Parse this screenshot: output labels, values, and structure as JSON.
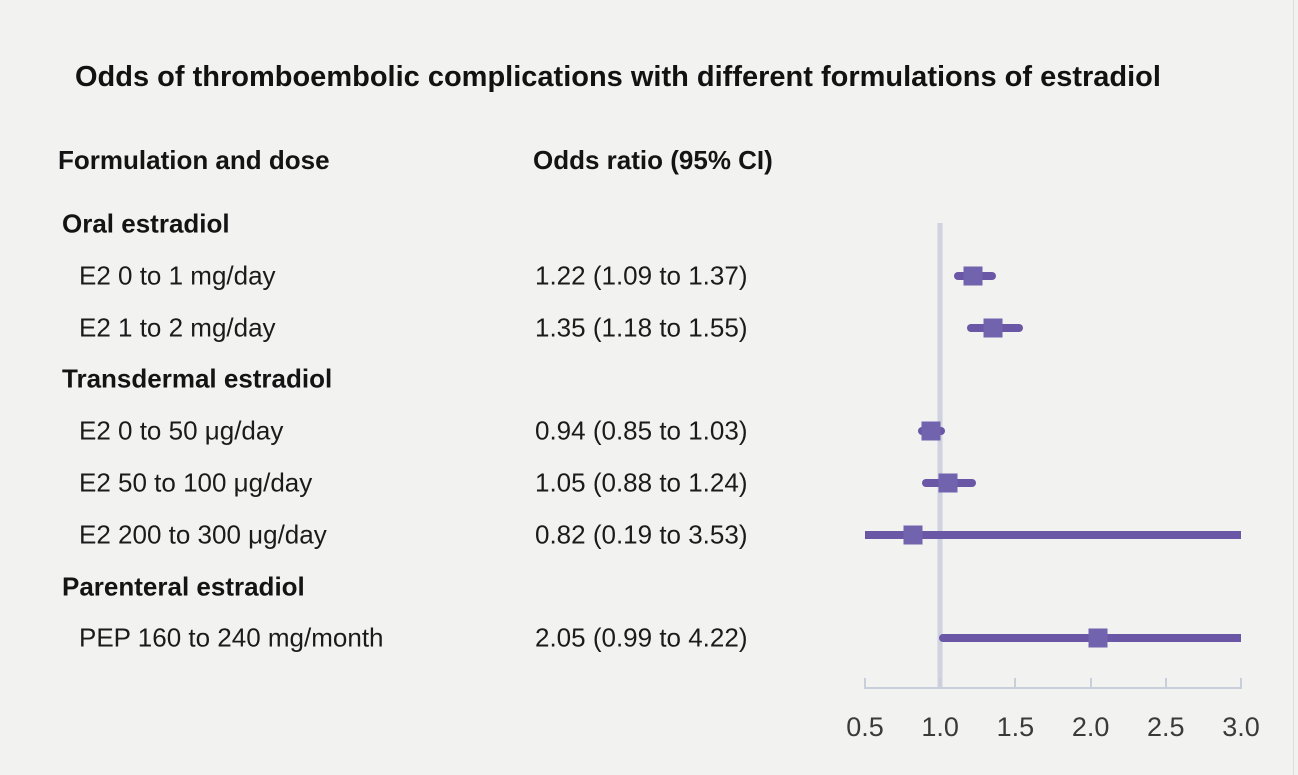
{
  "title": "Odds of thromboembolic complications with different formulations of estradiol",
  "columns": {
    "formulation": "Formulation and dose",
    "odds_ratio": "Odds ratio (95% CI)"
  },
  "chart_data": {
    "type": "forest",
    "title": "Odds of thromboembolic complications with different formulations of estradiol",
    "x_axis": {
      "min": 0.5,
      "max": 3.0,
      "step": 0.5,
      "reference_line": 1.0,
      "tick_labels": [
        "0.5",
        "1.0",
        "1.5",
        "2.0",
        "2.5",
        "3.0"
      ]
    },
    "rows": [
      {
        "kind": "group",
        "label": "Oral estradiol"
      },
      {
        "kind": "item",
        "label": "E2 0 to 1 mg/day",
        "value_text": "1.22 (1.09 to 1.37)",
        "est": 1.22,
        "lo": 1.09,
        "hi": 1.37
      },
      {
        "kind": "item",
        "label": "E2 1 to 2 mg/day",
        "value_text": "1.35 (1.18 to 1.55)",
        "est": 1.35,
        "lo": 1.18,
        "hi": 1.55
      },
      {
        "kind": "group",
        "label": "Transdermal estradiol"
      },
      {
        "kind": "item",
        "label": "E2 0 to 50 μg/day",
        "value_text": "0.94 (0.85 to 1.03)",
        "est": 0.94,
        "lo": 0.85,
        "hi": 1.03
      },
      {
        "kind": "item",
        "label": "E2 50 to 100 μg/day",
        "value_text": "1.05 (0.88 to 1.24)",
        "est": 1.05,
        "lo": 0.88,
        "hi": 1.24
      },
      {
        "kind": "item",
        "label": "E2 200 to 300 μg/day",
        "value_text": "0.82 (0.19 to 3.53)",
        "est": 0.82,
        "lo": 0.19,
        "hi": 3.53
      },
      {
        "kind": "group",
        "label": "Parenteral estradiol"
      },
      {
        "kind": "item",
        "label": "PEP 160 to 240 mg/month",
        "value_text": "2.05 (0.99 to 4.22)",
        "est": 2.05,
        "lo": 0.99,
        "hi": 4.22
      }
    ],
    "colors": {
      "ci_bar": "#6a58a6",
      "est_square": "#7163ad",
      "reference_line": "#ced3df",
      "axis": "#c9cedb",
      "background": "#f2f2f1",
      "text": "#1b1b1b"
    }
  }
}
